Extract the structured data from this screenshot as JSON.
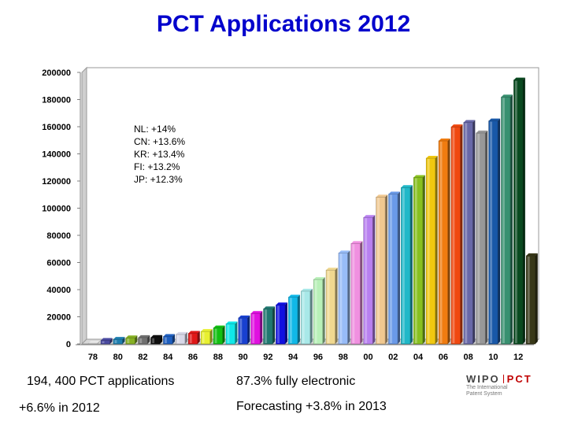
{
  "title": "PCT Applications 2012",
  "annotations": [
    "NL: +14%",
    "CN: +13.6%",
    "KR: +13.4%",
    "FI: +13.2%",
    "JP: +12.3%"
  ],
  "stats": {
    "applications": "194, 400 PCT applications",
    "growth": "+6.6% in 2012",
    "electronic": "87.3% fully electronic",
    "forecast": "Forecasting +3.8% in 2013"
  },
  "logo": {
    "left": "WIPO",
    "right": "PCT",
    "line1": "The International",
    "line2": "Patent System"
  },
  "chart_data": {
    "type": "bar",
    "title": "PCT Applications 2012",
    "xlabel": "",
    "ylabel": "",
    "ylim": [
      0,
      200000
    ],
    "yticks": [
      0,
      20000,
      40000,
      60000,
      80000,
      100000,
      120000,
      140000,
      160000,
      180000,
      200000
    ],
    "categories": [
      "78",
      "79",
      "80",
      "81",
      "82",
      "83",
      "84",
      "85",
      "86",
      "87",
      "88",
      "89",
      "90",
      "91",
      "92",
      "93",
      "94",
      "95",
      "96",
      "97",
      "98",
      "99",
      "00",
      "01",
      "02",
      "03",
      "04",
      "05",
      "06",
      "07",
      "08",
      "09",
      "10",
      "11",
      "12",
      "13"
    ],
    "xtick_labels": [
      "78",
      "80",
      "82",
      "84",
      "86",
      "88",
      "90",
      "92",
      "94",
      "96",
      "98",
      "00",
      "02",
      "04",
      "06",
      "08",
      "10",
      "12"
    ],
    "values": [
      500,
      2600,
      3400,
      4500,
      4700,
      4800,
      5500,
      7000,
      7800,
      9200,
      11800,
      14800,
      19200,
      22500,
      25900,
      28800,
      34500,
      38900,
      47500,
      54400,
      67000,
      74000,
      93200,
      108200,
      110400,
      115200,
      122600,
      136800,
      149600,
      159900,
      163200,
      155400,
      164300,
      181900,
      194400,
      65000
    ],
    "colors": [
      "#e8e8e8",
      "#4a4aa0",
      "#1e7fb0",
      "#86b024",
      "#707070",
      "#101010",
      "#1f5fbf",
      "#d8d8e8",
      "#e01818",
      "#e8f030",
      "#12c012",
      "#10e8e8",
      "#1840d0",
      "#e010e0",
      "#207870",
      "#1010e0",
      "#10b8e8",
      "#a8e8e8",
      "#b8f0b8",
      "#f0d890",
      "#98bcf8",
      "#f090e0",
      "#b880f0",
      "#f0c890",
      "#6a9ae8",
      "#20b8c8",
      "#88c020",
      "#f0c810",
      "#f07c10",
      "#f04810",
      "#6868a8",
      "#989898",
      "#1858a8",
      "#389070",
      "#0a4a20",
      "#383818"
    ],
    "legend": "none",
    "grid": false
  }
}
